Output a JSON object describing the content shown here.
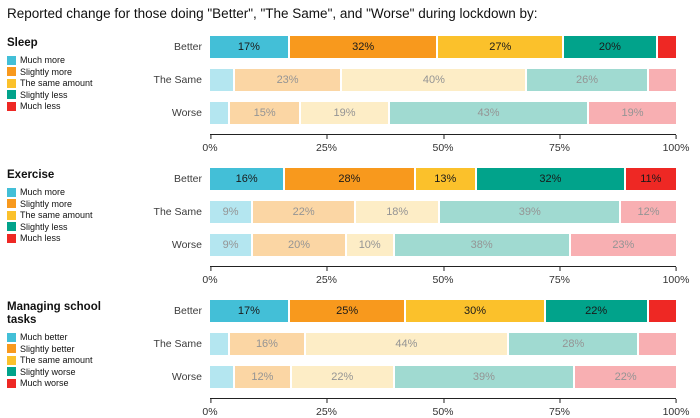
{
  "title": "Reported change for those doing \"Better\", \"The Same\", and \"Worse\" during lockdown by:",
  "axis": {
    "ticks": [
      "0%",
      "25%",
      "50%",
      "75%",
      "100%"
    ]
  },
  "colors": {
    "full": [
      "#43BFD7",
      "#F8991D",
      "#FBC12B",
      "#01A38B",
      "#EE2824"
    ],
    "faded": [
      "#B4E6F0",
      "#FBD6A4",
      "#FDEDC6",
      "#A0DAD1",
      "#F8AFB2"
    ]
  },
  "chart_data": [
    {
      "type": "bar",
      "orientation": "horizontal",
      "stacked": true,
      "panel": "Sleep",
      "legend": [
        "Much more",
        "Slightly more",
        "The same amount",
        "Slightly less",
        "Much less"
      ],
      "categories": [
        "Better",
        "The Same",
        "Worse"
      ],
      "xlim": [
        0,
        100
      ],
      "rows": [
        {
          "label": "Better",
          "style": "full",
          "values": [
            17,
            32,
            27,
            20,
            4
          ],
          "labels": [
            "17%",
            "32%",
            "27%",
            "20%",
            ""
          ]
        },
        {
          "label": "The Same",
          "style": "faded",
          "values": [
            5,
            23,
            40,
            26,
            6
          ],
          "labels": [
            "",
            "23%",
            "40%",
            "26%",
            ""
          ]
        },
        {
          "label": "Worse",
          "style": "faded",
          "values": [
            4,
            15,
            19,
            43,
            19
          ],
          "labels": [
            "",
            "15%",
            "19%",
            "43%",
            "19%"
          ]
        }
      ]
    },
    {
      "type": "bar",
      "orientation": "horizontal",
      "stacked": true,
      "panel": "Exercise",
      "legend": [
        "Much more",
        "Slightly more",
        "The same amount",
        "Slightly less",
        "Much less"
      ],
      "categories": [
        "Better",
        "The Same",
        "Worse"
      ],
      "xlim": [
        0,
        100
      ],
      "rows": [
        {
          "label": "Better",
          "style": "full",
          "values": [
            16,
            28,
            13,
            32,
            11
          ],
          "labels": [
            "16%",
            "28%",
            "13%",
            "32%",
            "11%"
          ]
        },
        {
          "label": "The Same",
          "style": "faded",
          "values": [
            9,
            22,
            18,
            39,
            12
          ],
          "labels": [
            "9%",
            "22%",
            "18%",
            "39%",
            "12%"
          ]
        },
        {
          "label": "Worse",
          "style": "faded",
          "values": [
            9,
            20,
            10,
            38,
            23
          ],
          "labels": [
            "9%",
            "20%",
            "10%",
            "38%",
            "23%"
          ]
        }
      ]
    },
    {
      "type": "bar",
      "orientation": "horizontal",
      "stacked": true,
      "panel": "Managing school tasks",
      "legend": [
        "Much better",
        "Slightly better",
        "The same amount",
        "Slightly worse",
        "Much worse"
      ],
      "categories": [
        "Better",
        "The Same",
        "Worse"
      ],
      "xlim": [
        0,
        100
      ],
      "rows": [
        {
          "label": "Better",
          "style": "full",
          "values": [
            17,
            25,
            30,
            22,
            6
          ],
          "labels": [
            "17%",
            "25%",
            "30%",
            "22%",
            ""
          ]
        },
        {
          "label": "The Same",
          "style": "faded",
          "values": [
            4,
            16,
            44,
            28,
            8
          ],
          "labels": [
            "",
            "16%",
            "44%",
            "28%",
            ""
          ]
        },
        {
          "label": "Worse",
          "style": "faded",
          "values": [
            5,
            12,
            22,
            39,
            22
          ],
          "labels": [
            "",
            "12%",
            "22%",
            "39%",
            "22%"
          ]
        }
      ]
    }
  ]
}
